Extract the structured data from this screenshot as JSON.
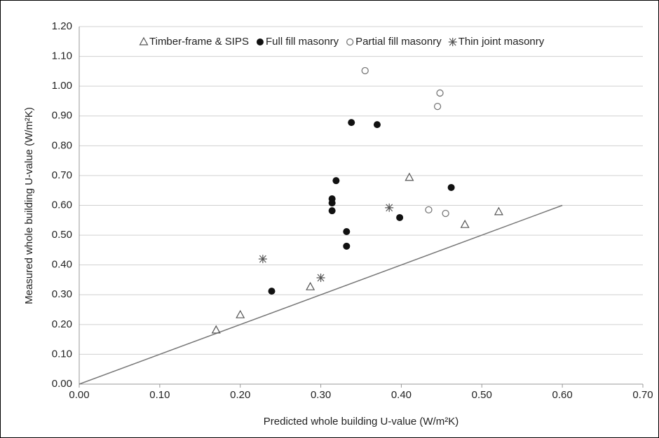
{
  "chart_data": {
    "type": "scatter",
    "x_label": "Predicted whole building U-value (W/m²K)",
    "y_label": "Measured whole building U-value (W/m²K)",
    "xlim": [
      0,
      0.7
    ],
    "ylim": [
      0,
      1.2
    ],
    "xticks": [
      {
        "value": 0,
        "label": "0.00"
      },
      {
        "value": 0.1,
        "label": "0.10"
      },
      {
        "value": 0.2,
        "label": "0.20"
      },
      {
        "value": 0.3,
        "label": "0.30"
      },
      {
        "value": 0.4,
        "label": "0.40"
      },
      {
        "value": 0.5,
        "label": "0.50"
      },
      {
        "value": 0.6,
        "label": "0.60"
      },
      {
        "value": 0.7,
        "label": "0.70"
      }
    ],
    "yticks": [
      {
        "value": 0,
        "label": "0.00"
      },
      {
        "value": 0.1,
        "label": "0.10"
      },
      {
        "value": 0.2,
        "label": "0.20"
      },
      {
        "value": 0.3,
        "label": "0.30"
      },
      {
        "value": 0.4,
        "label": "0.40"
      },
      {
        "value": 0.5,
        "label": "0.50"
      },
      {
        "value": 0.6,
        "label": "0.60"
      },
      {
        "value": 0.7,
        "label": "0.70"
      },
      {
        "value": 0.8,
        "label": "0.80"
      },
      {
        "value": 0.9,
        "label": "0.90"
      },
      {
        "value": 1,
        "label": "1.00"
      },
      {
        "value": 1.1,
        "label": "1.10"
      },
      {
        "value": 1.2,
        "label": "1.20"
      }
    ],
    "grid": true,
    "legend": "top",
    "series": [
      {
        "name": "Timber-frame & SIPS",
        "marker": "triangle",
        "color": "#555555",
        "x": [
          0.17,
          0.2,
          0.287,
          0.41,
          0.479,
          0.521
        ],
        "values": [
          0.181,
          0.232,
          0.326,
          0.693,
          0.535,
          0.578
        ]
      },
      {
        "name": "Full fill masonry",
        "marker": "dot",
        "color": "#111111",
        "x": [
          0.239,
          0.314,
          0.314,
          0.314,
          0.319,
          0.332,
          0.332,
          0.338,
          0.37,
          0.398,
          0.462
        ],
        "values": [
          0.312,
          0.622,
          0.608,
          0.582,
          0.683,
          0.512,
          0.463,
          0.878,
          0.871,
          0.559,
          0.66
        ]
      },
      {
        "name": "Partial fill masonry",
        "marker": "circle",
        "color": "#777777",
        "x": [
          0.355,
          0.448,
          0.445,
          0.434,
          0.455
        ],
        "values": [
          1.052,
          0.977,
          0.932,
          0.585,
          0.573
        ]
      },
      {
        "name": "Thin joint masonry",
        "marker": "star",
        "color": "#555555",
        "x": [
          0.228,
          0.3,
          0.385
        ],
        "values": [
          0.42,
          0.357,
          0.592
        ]
      }
    ],
    "reference_line": {
      "x": [
        0,
        0.6
      ],
      "y": [
        0,
        0.6
      ],
      "color": "#777777"
    }
  }
}
